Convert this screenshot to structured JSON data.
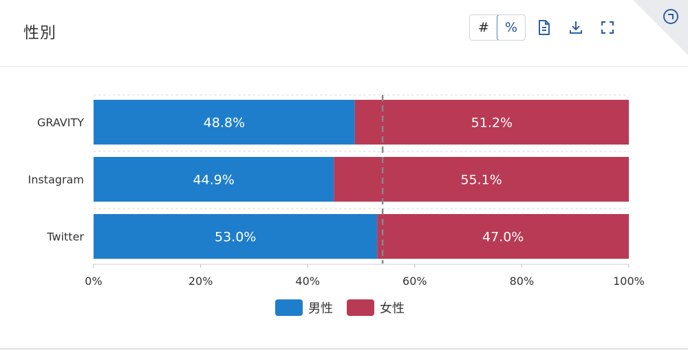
{
  "panel": {
    "title": "性別",
    "toggle": {
      "count_label": "#",
      "percent_label": "%",
      "active": "percent"
    },
    "icons": [
      "document-icon",
      "download-icon",
      "expand-icon",
      "corner-info-icon"
    ]
  },
  "colors": {
    "male": "#1f7ecb",
    "female": "#b93a55",
    "reference_line": "#888888"
  },
  "chart_data": {
    "type": "bar",
    "orientation": "horizontal",
    "stacked": true,
    "percent": true,
    "categories": [
      "GRAVITY",
      "Instagram",
      "Twitter"
    ],
    "series": [
      {
        "name": "男性",
        "values": [
          48.8,
          44.9,
          53.0
        ],
        "labels": [
          "48.8%",
          "44.9%",
          "53.0%"
        ]
      },
      {
        "name": "女性",
        "values": [
          51.2,
          55.1,
          47.0
        ],
        "labels": [
          "51.2%",
          "55.1%",
          "47.0%"
        ]
      }
    ],
    "reference_line": 54,
    "xlim": [
      0,
      100
    ],
    "xticks": [
      0,
      20,
      40,
      60,
      80,
      100
    ],
    "xtick_labels": [
      "0%",
      "20%",
      "40%",
      "60%",
      "80%",
      "100%"
    ],
    "title": "",
    "xlabel": "",
    "ylabel": "",
    "legend": "bottom-center",
    "grid": false
  }
}
